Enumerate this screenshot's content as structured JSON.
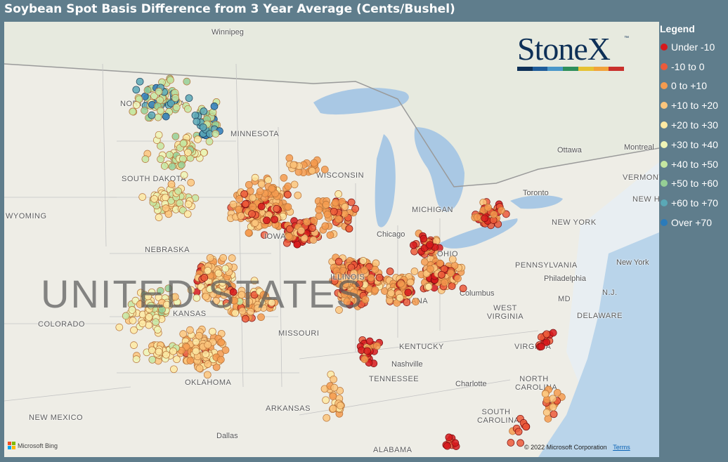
{
  "title": "Soybean Spot Basis Difference from 3 Year Average (Cents/Bushel)",
  "legend": {
    "title": "Legend",
    "items": [
      {
        "label": "Under -10",
        "color": "#d7191c"
      },
      {
        "label": "-10 to 0",
        "color": "#ec5a3a"
      },
      {
        "label": "0 to +10",
        "color": "#f59b4f"
      },
      {
        "label": "+10 to +20",
        "color": "#fbc57c"
      },
      {
        "label": "+20 to +30",
        "color": "#fde9a3"
      },
      {
        "label": "+30 to +40",
        "color": "#eef4b6"
      },
      {
        "label": "+40 to +50",
        "color": "#c5e6a1"
      },
      {
        "label": "+50 to +60",
        "color": "#95cf95"
      },
      {
        "label": "+60 to +70",
        "color": "#5aa8b6"
      },
      {
        "label": "Over +70",
        "color": "#2b7bba"
      }
    ]
  },
  "map": {
    "country_label": "UNITED STATES",
    "labels": {
      "winnipeg": "Winnipeg",
      "north_dakota": "NORTH DAKOTA",
      "minnesota": "MINNESOTA",
      "south_dakota": "SOUTH DAKOTA",
      "wisconsin": "WISCONSIN",
      "michigan": "MICHIGAN",
      "wyoming": "WYOMING",
      "nebraska": "NEBRASKA",
      "iowa": "IOWA",
      "illinois": "ILLINOIS",
      "indiana": "INDIANA",
      "ohio": "OHIO",
      "colorado": "COLORADO",
      "kansas": "KANSAS",
      "missouri": "MISSOURI",
      "kentucky": "KENTUCKY",
      "tennessee": "TENNESSEE",
      "oklahoma": "OKLAHOMA",
      "arkansas": "ARKANSAS",
      "new_mexico": "NEW MEXICO",
      "alabama": "ALABAMA",
      "dallas": "Dallas",
      "chicago": "Chicago",
      "columbus": "Columbus",
      "nashville": "Nashville",
      "charlotte": "Charlotte",
      "west_virginia": "WEST VIRGINIA",
      "virginia": "VIRGINIA",
      "north_carolina": "NORTH CAROLINA",
      "south_carolina": "SOUTH CAROLINA",
      "pennsylvania": "PENNSYLVANIA",
      "philadelphia": "Philadelphia",
      "new_york_state": "NEW YORK",
      "new_york_city": "New York",
      "md": "MD",
      "nj": "N.J.",
      "delaware": "DELAWARE",
      "toronto": "Toronto",
      "ottawa": "Ottawa",
      "montreal": "Montreal",
      "vermont": "VERMONT",
      "new_hampshire": "NEW HAMPSH"
    }
  },
  "logo": {
    "text": "StoneX",
    "tm": "™",
    "bar_colors": [
      "#0e3057",
      "#1f5c99",
      "#4a97c9",
      "#2e8f5b",
      "#e6c233",
      "#f2a33a",
      "#c9302c"
    ]
  },
  "attribution": {
    "bing": "Microsoft Bing",
    "copyright": "© 2022 Microsoft Corporation",
    "terms": "Terms",
    "bing_colors": [
      "#f25022",
      "#7fba00",
      "#00a4ef",
      "#ffb900"
    ]
  }
}
